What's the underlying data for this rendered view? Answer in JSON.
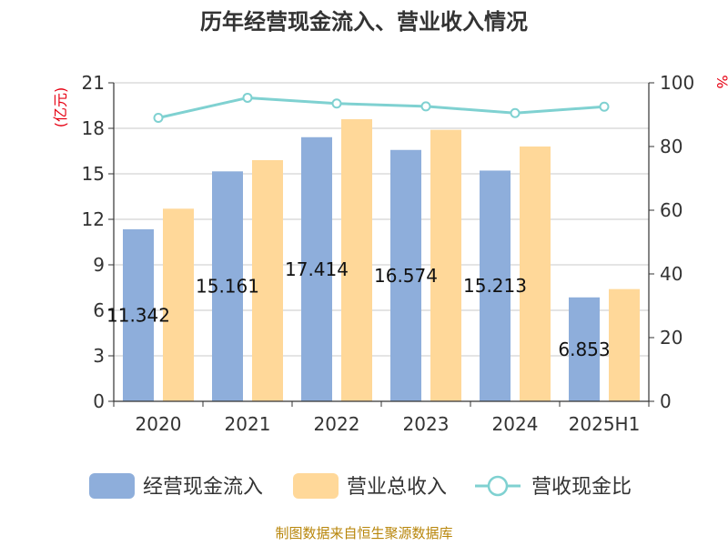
{
  "chart_data": {
    "type": "bar",
    "title": "历年经营现金流入、营业收入情况",
    "categories": [
      "2020",
      "2021",
      "2022",
      "2023",
      "2024",
      "2025H1"
    ],
    "series": [
      {
        "name": "经营现金流入",
        "type": "bar",
        "axis": "left",
        "color": "#8eaedb",
        "values": [
          11.342,
          15.161,
          17.414,
          16.574,
          15.213,
          6.853
        ],
        "labels": [
          "11.342",
          "15.161",
          "17.414",
          "16.574",
          "15.213",
          "6.853"
        ]
      },
      {
        "name": "营业总收入",
        "type": "bar",
        "axis": "left",
        "color": "#ffd899",
        "values": [
          12.7,
          15.9,
          18.6,
          17.9,
          16.8,
          7.4
        ]
      },
      {
        "name": "营收现金比",
        "type": "line",
        "axis": "right",
        "color": "#7fd1d1",
        "values": [
          89.0,
          95.3,
          93.5,
          92.6,
          90.5,
          92.5
        ]
      }
    ],
    "y_left": {
      "unit": "(亿元)",
      "ylim": [
        0,
        21
      ],
      "ticks": [
        "0",
        "3",
        "6",
        "9",
        "12",
        "15",
        "18",
        "21"
      ]
    },
    "y_right": {
      "unit": "%",
      "ylim": [
        0,
        100
      ],
      "ticks": [
        "0",
        "20",
        "40",
        "60",
        "80",
        "100"
      ]
    },
    "grid": true,
    "legend_position": "bottom"
  },
  "source": "制图数据来自恒生聚源数据库"
}
